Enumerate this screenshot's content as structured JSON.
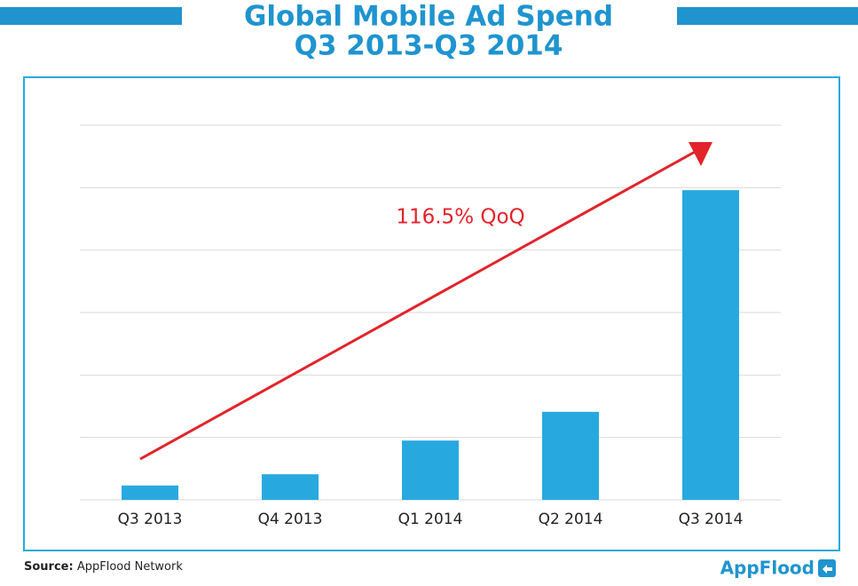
{
  "chart_data": {
    "type": "bar",
    "title": "Global Mobile Ad Spend",
    "subtitle": "Q3 2013-Q3 2014",
    "categories": [
      "Q3 2013",
      "Q4 2013",
      "Q1 2014",
      "Q2 2014",
      "Q3 2014"
    ],
    "values": [
      0.23,
      0.41,
      0.95,
      1.41,
      4.96
    ],
    "color": "#27a9df",
    "ylim": [
      0,
      6
    ],
    "yticks": [
      0,
      1,
      2,
      3,
      4,
      5,
      6
    ],
    "grid": true,
    "annotation": "116.5% QoQ",
    "source_label": "Source:",
    "source": "AppFlood Network",
    "brand": "AppFlood"
  }
}
